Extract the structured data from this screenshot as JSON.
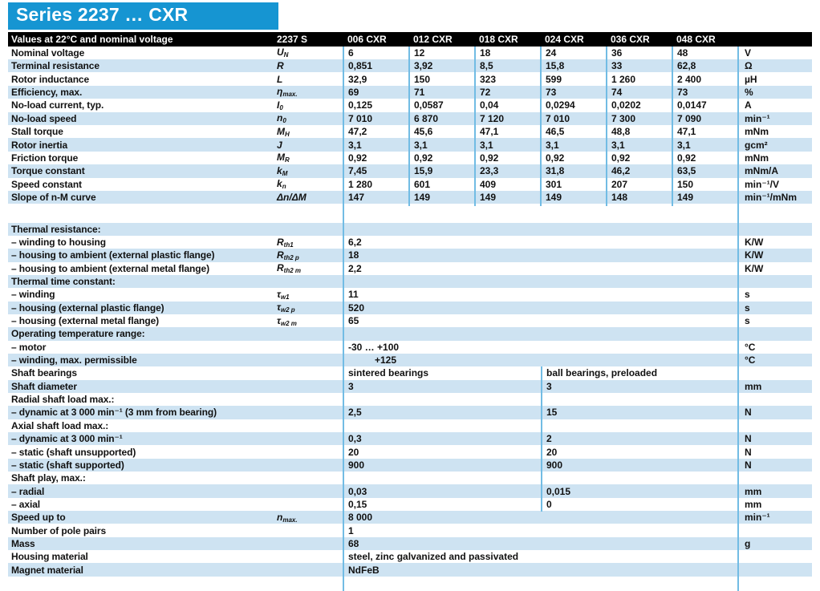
{
  "title": "Series 2237 … CXR",
  "colors": {
    "brand_blue": "#1695d2",
    "row_blue": "#cee3f2",
    "line_blue": "#72bce4",
    "header_black": "#000000"
  },
  "header": {
    "label": "Values at 22°C and nominal voltage",
    "series": "2237 S",
    "columns": [
      "006 CXR",
      "012 CXR",
      "018 CXR",
      "024 CXR",
      "036 CXR",
      "048 CXR"
    ]
  },
  "block1": {
    "rows": [
      {
        "label": "Nominal voltage",
        "sym": "U_{N}",
        "values": [
          "6",
          "12",
          "18",
          "24",
          "36",
          "48"
        ],
        "unit": "V"
      },
      {
        "label": "Terminal resistance",
        "sym": "R",
        "values": [
          "0,851",
          "3,92",
          "8,5",
          "15,8",
          "33",
          "62,8"
        ],
        "unit": "Ω"
      },
      {
        "label": "Rotor inductance",
        "sym": "L",
        "values": [
          "32,9",
          "150",
          "323",
          "599",
          "1 260",
          "2 400"
        ],
        "unit": "µH"
      },
      {
        "label": "Efficiency, max.",
        "sym": "η_{max.}",
        "values": [
          "69",
          "71",
          "72",
          "73",
          "74",
          "73"
        ],
        "unit": "%"
      },
      {
        "label": "No-load current, typ.",
        "sym": "I_{0}",
        "values": [
          "0,125",
          "0,0587",
          "0,04",
          "0,0294",
          "0,0202",
          "0,0147"
        ],
        "unit": "A"
      },
      {
        "label": "No-load speed",
        "sym": "n_{0}",
        "values": [
          "7 010",
          "6 870",
          "7 120",
          "7 010",
          "7 300",
          "7 090"
        ],
        "unit": "min⁻¹"
      },
      {
        "label": "Stall torque",
        "sym": "M_{H}",
        "values": [
          "47,2",
          "45,6",
          "47,1",
          "46,5",
          "48,8",
          "47,1"
        ],
        "unit": "mNm"
      },
      {
        "label": "Rotor inertia",
        "sym": "J",
        "values": [
          "3,1",
          "3,1",
          "3,1",
          "3,1",
          "3,1",
          "3,1"
        ],
        "unit": "gcm²"
      },
      {
        "label": "Friction torque",
        "sym": "M_{R}",
        "values": [
          "0,92",
          "0,92",
          "0,92",
          "0,92",
          "0,92",
          "0,92"
        ],
        "unit": "mNm"
      },
      {
        "label": "Torque constant",
        "sym": "k_{M}",
        "values": [
          "7,45",
          "15,9",
          "23,3",
          "31,8",
          "46,2",
          "63,5"
        ],
        "unit": "mNm/A"
      },
      {
        "label": "Speed constant",
        "sym": "k_{n}",
        "values": [
          "1 280",
          "601",
          "409",
          "301",
          "207",
          "150"
        ],
        "unit": "min⁻¹/V"
      },
      {
        "label": "Slope of n-M curve",
        "sym": "Δn/ΔM",
        "values": [
          "147",
          "149",
          "149",
          "149",
          "148",
          "149"
        ],
        "unit": "min⁻¹/mNm"
      }
    ]
  },
  "block2": {
    "rows": [
      {
        "type": "section",
        "label": "Thermal resistance:"
      },
      {
        "type": "single",
        "label": "– winding to housing",
        "sym": "R_{th1}",
        "value": "6,2",
        "unit": "K/W"
      },
      {
        "type": "single",
        "label": "– housing to ambient (external plastic flange)",
        "sym": "R_{th2 p}",
        "value": "18",
        "unit": "K/W"
      },
      {
        "type": "single",
        "label": "– housing to ambient (external metal flange)",
        "sym": "R_{th2 m}",
        "value": "2,2",
        "unit": "K/W"
      },
      {
        "type": "section",
        "label": "Thermal time constant:"
      },
      {
        "type": "single",
        "label": "– winding",
        "sym": "τ_{w1}",
        "value": "11",
        "unit": "s"
      },
      {
        "type": "single",
        "label": "– housing (external plastic flange)",
        "sym": "τ_{w2 p}",
        "value": "520",
        "unit": "s"
      },
      {
        "type": "single",
        "label": "– housing (external metal flange)",
        "sym": "τ_{w2 m}",
        "value": "65",
        "unit": "s"
      },
      {
        "type": "section",
        "label": "Operating temperature range:"
      },
      {
        "type": "single",
        "label": "– motor",
        "sym": "",
        "value": "-30 … +100",
        "unit": "°C"
      },
      {
        "type": "single",
        "label": "– winding, max. permissible",
        "sym": "",
        "value": "+125",
        "unit": "°C",
        "indent": true
      },
      {
        "type": "dual",
        "label": "Shaft bearings",
        "value1": "sintered bearings",
        "value2": "ball bearings, preloaded",
        "unit": ""
      },
      {
        "type": "dual",
        "label": "Shaft diameter",
        "value1": "3",
        "value2": "3",
        "unit": "mm"
      },
      {
        "type": "section",
        "label": "Radial shaft load max.:"
      },
      {
        "type": "dual",
        "label": "– dynamic at 3 000 min⁻¹ (3 mm from bearing)",
        "value1": "2,5",
        "value2": "15",
        "unit": "N"
      },
      {
        "type": "section",
        "label": "Axial shaft load max.:"
      },
      {
        "type": "dual",
        "label": "– dynamic at 3 000 min⁻¹",
        "value1": "0,3",
        "value2": "2",
        "unit": "N"
      },
      {
        "type": "dual",
        "label": "– static (shaft unsupported)",
        "value1": "20",
        "value2": "20",
        "unit": "N"
      },
      {
        "type": "dual",
        "label": "– static (shaft supported)",
        "value1": "900",
        "value2": "900",
        "unit": "N"
      },
      {
        "type": "section",
        "label": "Shaft play, max.:"
      },
      {
        "type": "dual",
        "label": "– radial",
        "value1": "0,03",
        "value2": "0,015",
        "unit": "mm"
      },
      {
        "type": "dual",
        "label": "– axial",
        "value1": "0,15",
        "value2": "0",
        "unit": "mm"
      },
      {
        "type": "single",
        "label": "Speed up to",
        "sym": "n_{max.}",
        "value": "8 000",
        "unit": "min⁻¹"
      },
      {
        "type": "single",
        "label": "Number of pole pairs",
        "sym": "",
        "value": "1",
        "unit": ""
      },
      {
        "type": "single",
        "label": "Mass",
        "sym": "",
        "value": "68",
        "unit": "g"
      },
      {
        "type": "single",
        "label": "Housing material",
        "sym": "",
        "value": "steel, zinc galvanized and passivated",
        "unit": ""
      },
      {
        "type": "single",
        "label": "Magnet material",
        "sym": "",
        "value": "NdFeB",
        "unit": ""
      }
    ]
  }
}
